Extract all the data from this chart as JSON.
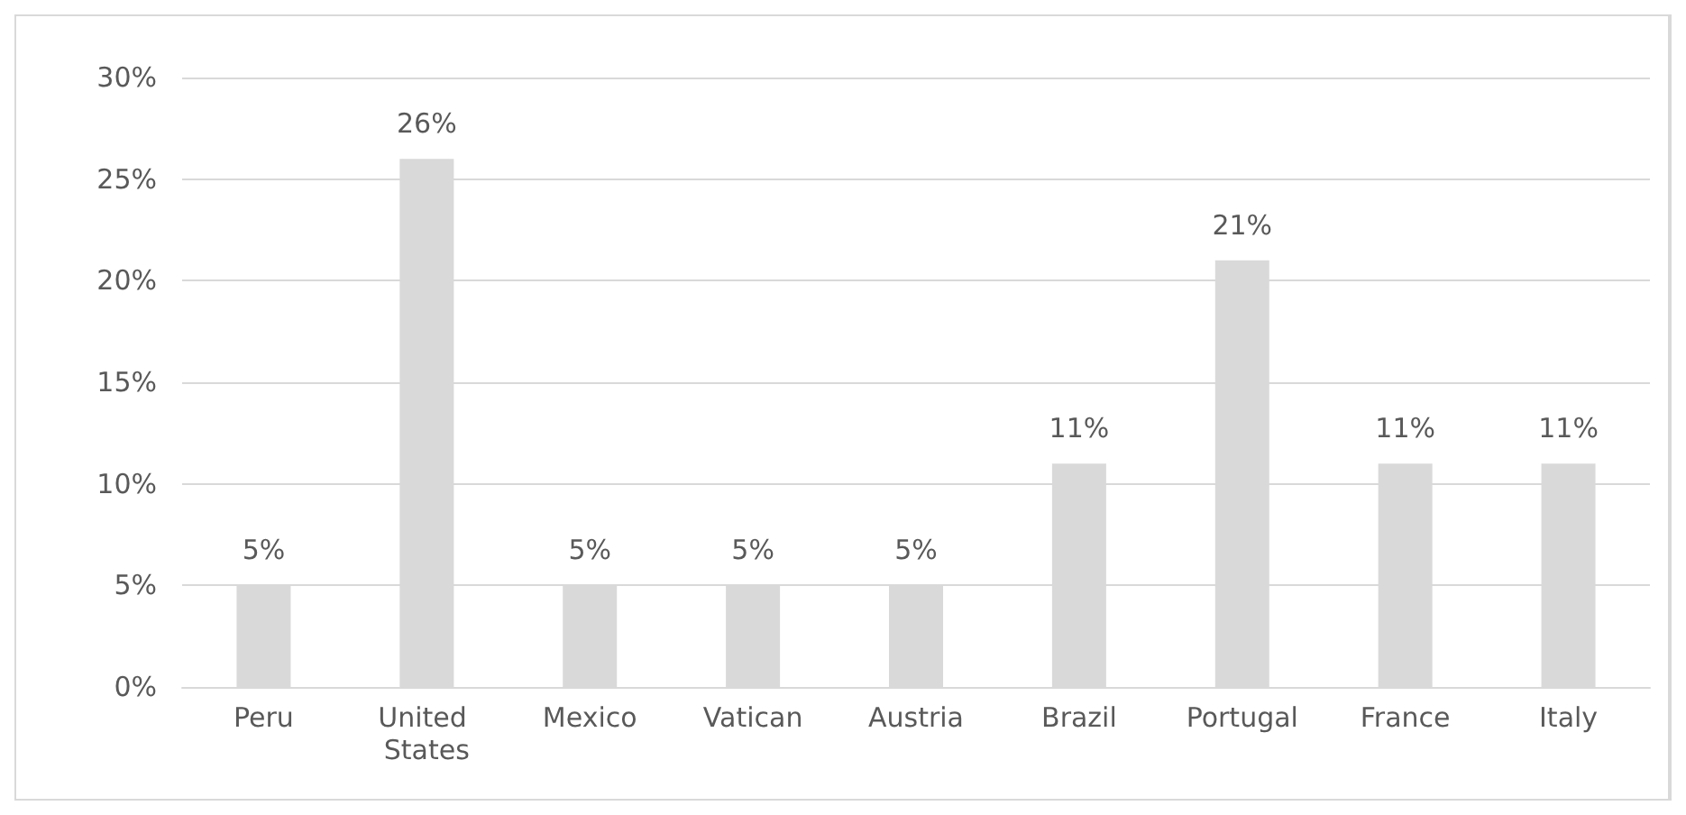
{
  "chart_data": {
    "type": "bar",
    "categories": [
      "Peru",
      "United States",
      "Mexico",
      "Vatican",
      "Austria",
      "Brazil",
      "Portugal",
      "France",
      "Italy"
    ],
    "values": [
      5,
      26,
      5,
      5,
      5,
      11,
      21,
      11,
      11
    ],
    "value_labels": [
      "5%",
      "26%",
      "5%",
      "5%",
      "5%",
      "11%",
      "21%",
      "11%",
      "11%"
    ],
    "color": "#d9d9d9",
    "ylim": [
      0,
      30
    ],
    "yticks": [
      {
        "value": 0,
        "label": "0%"
      },
      {
        "value": 5,
        "label": "5%"
      },
      {
        "value": 10,
        "label": "10%"
      },
      {
        "value": 15,
        "label": "15%"
      },
      {
        "value": 20,
        "label": "20%"
      },
      {
        "value": 25,
        "label": "25%"
      },
      {
        "value": 30,
        "label": "30%"
      }
    ],
    "grid": "y"
  }
}
